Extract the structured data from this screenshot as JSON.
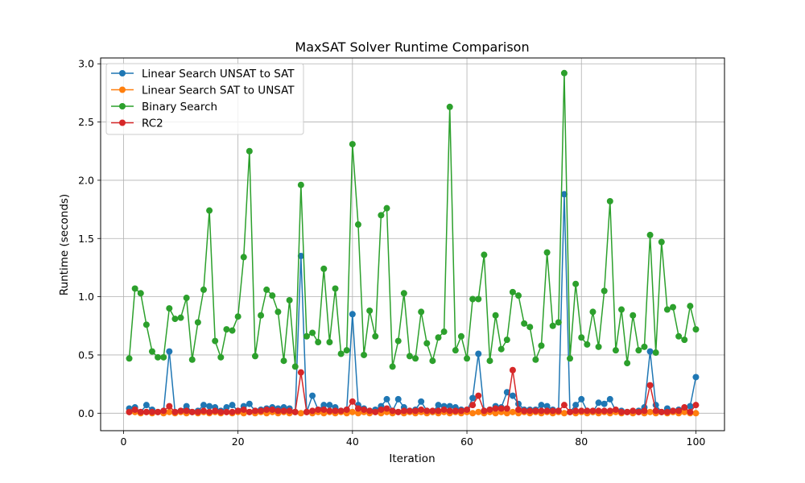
{
  "chart_data": {
    "type": "line",
    "title": "MaxSAT Solver Runtime Comparison",
    "xlabel": "Iteration",
    "ylabel": "Runtime (seconds)",
    "xlim": [
      -4,
      105
    ],
    "ylim": [
      -0.15,
      3.05
    ],
    "xticks": [
      0,
      20,
      40,
      60,
      80,
      100
    ],
    "yticks": [
      0.0,
      0.5,
      1.0,
      1.5,
      2.0,
      2.5,
      3.0
    ],
    "ytick_labels": [
      "0.0",
      "0.5",
      "1.0",
      "1.5",
      "2.0",
      "2.5",
      "3.0"
    ],
    "grid": true,
    "legend_position": "top-left",
    "markers": true,
    "series": [
      {
        "name": "Linear Search UNSAT to SAT",
        "color": "#1f77b4",
        "values": [
          0.04,
          0.05,
          0.01,
          0.07,
          0.03,
          0.01,
          0.02,
          0.53,
          0.01,
          0.02,
          0.06,
          0.01,
          0.02,
          0.07,
          0.06,
          0.05,
          0.02,
          0.05,
          0.07,
          0.02,
          0.06,
          0.08,
          0.02,
          0.03,
          0.04,
          0.05,
          0.04,
          0.05,
          0.04,
          0.01,
          1.35,
          0.01,
          0.15,
          0.03,
          0.07,
          0.07,
          0.05,
          0.02,
          0.03,
          0.85,
          0.07,
          0.04,
          0.02,
          0.03,
          0.06,
          0.12,
          0.02,
          0.12,
          0.05,
          0.02,
          0.03,
          0.1,
          0.02,
          0.01,
          0.07,
          0.06,
          0.06,
          0.05,
          0.03,
          0.02,
          0.13,
          0.51,
          0.02,
          0.03,
          0.06,
          0.05,
          0.18,
          0.15,
          0.08,
          0.03,
          0.03,
          0.03,
          0.07,
          0.06,
          0.03,
          0.02,
          1.88,
          0.01,
          0.07,
          0.12,
          0.02,
          0.01,
          0.09,
          0.08,
          0.12,
          0.02,
          0.02,
          0.01,
          0.01,
          0.02,
          0.05,
          0.53,
          0.07,
          0.01,
          0.04,
          0.02,
          0.03,
          0.03,
          0.06,
          0.31
        ]
      },
      {
        "name": "Linear Search SAT to UNSAT",
        "color": "#ff7f0e",
        "values": [
          0.01,
          0.01,
          0.0,
          0.01,
          0.0,
          0.01,
          0.0,
          0.01,
          0.0,
          0.01,
          0.0,
          0.01,
          0.0,
          0.01,
          0.0,
          0.01,
          0.0,
          0.01,
          0.0,
          0.01,
          0.0,
          0.01,
          0.0,
          0.01,
          0.0,
          0.01,
          0.0,
          0.01,
          0.0,
          0.01,
          0.0,
          0.01,
          0.0,
          0.01,
          0.0,
          0.01,
          0.0,
          0.01,
          0.0,
          0.01,
          0.0,
          0.01,
          0.0,
          0.01,
          0.0,
          0.01,
          0.0,
          0.01,
          0.0,
          0.01,
          0.0,
          0.01,
          0.0,
          0.01,
          0.0,
          0.01,
          0.0,
          0.01,
          0.0,
          0.01,
          0.0,
          0.01,
          0.0,
          0.01,
          0.0,
          0.01,
          0.0,
          0.01,
          0.0,
          0.01,
          0.0,
          0.01,
          0.0,
          0.01,
          0.0,
          0.01,
          0.0,
          0.01,
          0.0,
          0.01,
          0.0,
          0.01,
          0.0,
          0.01,
          0.0,
          0.01,
          0.0,
          0.01,
          0.0,
          0.01,
          0.0,
          0.01,
          0.0,
          0.01,
          0.0,
          0.01,
          0.0,
          0.01,
          0.0,
          0.0
        ]
      },
      {
        "name": "Binary Search",
        "color": "#2ca02c",
        "values": [
          0.47,
          1.07,
          1.03,
          0.76,
          0.53,
          0.48,
          0.48,
          0.9,
          0.81,
          0.82,
          0.99,
          0.46,
          0.78,
          1.06,
          1.74,
          0.62,
          0.48,
          0.72,
          0.71,
          0.83,
          1.34,
          2.25,
          0.49,
          0.84,
          1.06,
          1.01,
          0.87,
          0.45,
          0.97,
          0.4,
          1.96,
          0.66,
          0.69,
          0.61,
          1.24,
          0.61,
          1.07,
          0.51,
          0.54,
          2.31,
          1.62,
          0.5,
          0.88,
          0.66,
          1.7,
          1.76,
          0.4,
          0.62,
          1.03,
          0.49,
          0.47,
          0.87,
          0.6,
          0.45,
          0.65,
          0.7,
          2.63,
          0.54,
          0.66,
          0.47,
          0.98,
          0.98,
          1.36,
          0.45,
          0.84,
          0.55,
          0.63,
          1.04,
          1.01,
          0.77,
          0.74,
          0.46,
          0.58,
          1.38,
          0.75,
          0.78,
          2.92,
          0.47,
          1.11,
          0.65,
          0.59,
          0.87,
          0.57,
          1.05,
          1.82,
          0.54,
          0.89,
          0.43,
          0.84,
          0.54,
          0.57,
          1.53,
          0.52,
          1.47,
          0.89,
          0.91,
          0.66,
          0.63,
          0.92,
          0.72
        ]
      },
      {
        "name": "RC2",
        "color": "#d62728",
        "values": [
          0.01,
          0.03,
          0.01,
          0.01,
          0.01,
          0.01,
          0.02,
          0.06,
          0.01,
          0.02,
          0.02,
          0.01,
          0.01,
          0.02,
          0.01,
          0.02,
          0.01,
          0.01,
          0.01,
          0.02,
          0.03,
          0.01,
          0.02,
          0.02,
          0.03,
          0.03,
          0.02,
          0.02,
          0.02,
          0.01,
          0.35,
          0.01,
          0.02,
          0.03,
          0.03,
          0.02,
          0.02,
          0.02,
          0.03,
          0.1,
          0.04,
          0.03,
          0.02,
          0.01,
          0.03,
          0.04,
          0.02,
          0.01,
          0.02,
          0.02,
          0.02,
          0.03,
          0.02,
          0.02,
          0.02,
          0.03,
          0.02,
          0.02,
          0.02,
          0.03,
          0.07,
          0.15,
          0.02,
          0.03,
          0.04,
          0.04,
          0.04,
          0.37,
          0.03,
          0.02,
          0.02,
          0.02,
          0.02,
          0.02,
          0.02,
          0.02,
          0.07,
          0.01,
          0.02,
          0.02,
          0.02,
          0.02,
          0.02,
          0.02,
          0.02,
          0.03,
          0.01,
          0.01,
          0.02,
          0.01,
          0.02,
          0.24,
          0.02,
          0.01,
          0.01,
          0.02,
          0.02,
          0.05,
          0.01,
          0.07
        ]
      }
    ]
  }
}
